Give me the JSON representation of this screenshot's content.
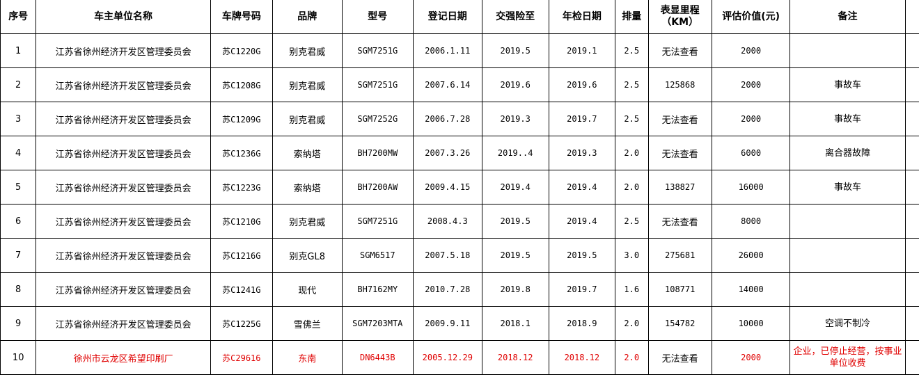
{
  "colors": {
    "highlight_text": "#e00000"
  },
  "headers": [
    "序号",
    "车主单位名称",
    "车牌号码",
    "品牌",
    "型号",
    "登记日期",
    "交强险至",
    "年检日期",
    "排量",
    "表显里程（KM）",
    "评估价值(元)",
    "备注"
  ],
  "rows": [
    {
      "no": "1",
      "owner": "江苏省徐州经济开发区管理委员会",
      "plate": "苏C1220G",
      "brand": "别克君威",
      "model": "SGM7251G",
      "reg": "2006.1.11",
      "ins": "2019.5",
      "inspect": "2019.1",
      "disp": "2.5",
      "mileage": "无法查看",
      "value": "2000",
      "note": ""
    },
    {
      "no": "2",
      "owner": "江苏省徐州经济开发区管理委员会",
      "plate": "苏C1208G",
      "brand": "别克君威",
      "model": "SGM7251G",
      "reg": "2007.6.14",
      "ins": "2019.6",
      "inspect": "2019.6",
      "disp": "2.5",
      "mileage": "125868",
      "value": "2000",
      "note": "事故车"
    },
    {
      "no": "3",
      "owner": "江苏省徐州经济开发区管理委员会",
      "plate": "苏C1209G",
      "brand": "别克君威",
      "model": "SGM7252G",
      "reg": "2006.7.28",
      "ins": "2019.3",
      "inspect": "2019.7",
      "disp": "2.5",
      "mileage": "无法查看",
      "value": "2000",
      "note": "事故车"
    },
    {
      "no": "4",
      "owner": "江苏省徐州经济开发区管理委员会",
      "plate": "苏C1236G",
      "brand": "索纳塔",
      "model": "BH7200MW",
      "reg": "2007.3.26",
      "ins": "2019..4",
      "inspect": "2019.3",
      "disp": "2.0",
      "mileage": "无法查看",
      "value": "6000",
      "note": "离合器故障"
    },
    {
      "no": "5",
      "owner": "江苏省徐州经济开发区管理委员会",
      "plate": "苏C1223G",
      "brand": "索纳塔",
      "model": "BH7200AW",
      "reg": "2009.4.15",
      "ins": "2019.4",
      "inspect": "2019.4",
      "disp": "2.0",
      "mileage": "138827",
      "value": "16000",
      "note": "事故车"
    },
    {
      "no": "6",
      "owner": "江苏省徐州经济开发区管理委员会",
      "plate": "苏C1210G",
      "brand": "别克君威",
      "model": "SGM7251G",
      "reg": "2008.4.3",
      "ins": "2019.5",
      "inspect": "2019.4",
      "disp": "2.5",
      "mileage": "无法查看",
      "value": "8000",
      "note": ""
    },
    {
      "no": "7",
      "owner": "江苏省徐州经济开发区管理委员会",
      "plate": "苏C1216G",
      "brand": "别克GL8",
      "model": "SGM6517",
      "reg": "2007.5.18",
      "ins": "2019.5",
      "inspect": "2019.5",
      "disp": "3.0",
      "mileage": "275681",
      "value": "26000",
      "note": ""
    },
    {
      "no": "8",
      "owner": "江苏省徐州经济开发区管理委员会",
      "plate": "苏C1241G",
      "brand": "现代",
      "model": "BH7162MY",
      "reg": "2010.7.28",
      "ins": "2019.8",
      "inspect": "2019.7",
      "disp": "1.6",
      "mileage": "108771",
      "value": "14000",
      "note": ""
    },
    {
      "no": "9",
      "owner": "江苏省徐州经济开发区管理委员会",
      "plate": "苏C1225G",
      "brand": "雪佛兰",
      "model": "SGM7203MTA",
      "reg": "2009.9.11",
      "ins": "2018.1",
      "inspect": "2018.9",
      "disp": "2.0",
      "mileage": "154782",
      "value": "10000",
      "note": "空调不制冷"
    },
    {
      "no": "10",
      "owner": "徐州市云龙区希望印刷厂",
      "plate": "苏C29616",
      "brand": "东南",
      "model": "DN6443B",
      "reg": "2005.12.29",
      "ins": "2018.12",
      "inspect": "2018.12",
      "disp": "2.0",
      "mileage": "无法查看",
      "value": "2000",
      "note": "企业，已停止经营，按事业单位收费"
    }
  ]
}
